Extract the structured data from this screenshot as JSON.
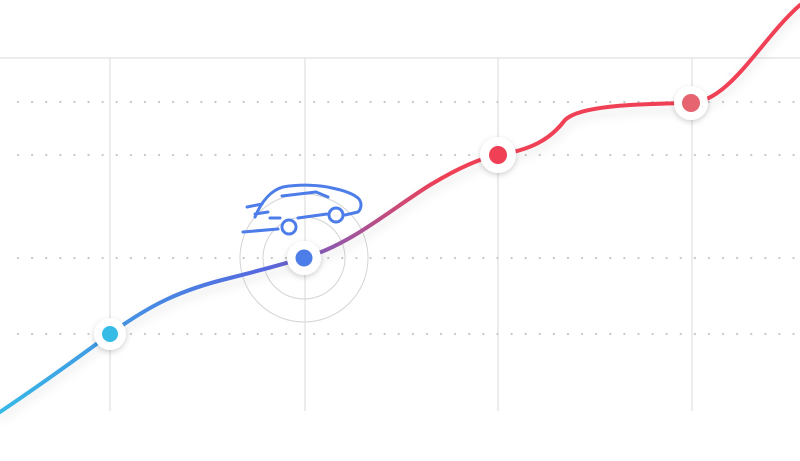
{
  "colors": {
    "background": "#ffffff",
    "grid_line": "#e6e6e6",
    "dotted_line": "#c8c8c8",
    "gradient_start": "#36b9e6",
    "gradient_mid": "#5567e0",
    "gradient_end": "#f04055",
    "car": "#4d7de8",
    "active_marker": "#4d7de8",
    "halo": "#d4d4d4"
  },
  "markers": [
    {
      "name": "marker-start",
      "color": "#36bbe6",
      "state": "default"
    },
    {
      "name": "marker-active",
      "color": "#4d7de8",
      "state": "active"
    },
    {
      "name": "marker-red",
      "color": "#f04055",
      "state": "default"
    },
    {
      "name": "marker-end",
      "color": "#e6636f",
      "state": "default"
    }
  ],
  "icons": {
    "vehicle": "car-icon"
  }
}
